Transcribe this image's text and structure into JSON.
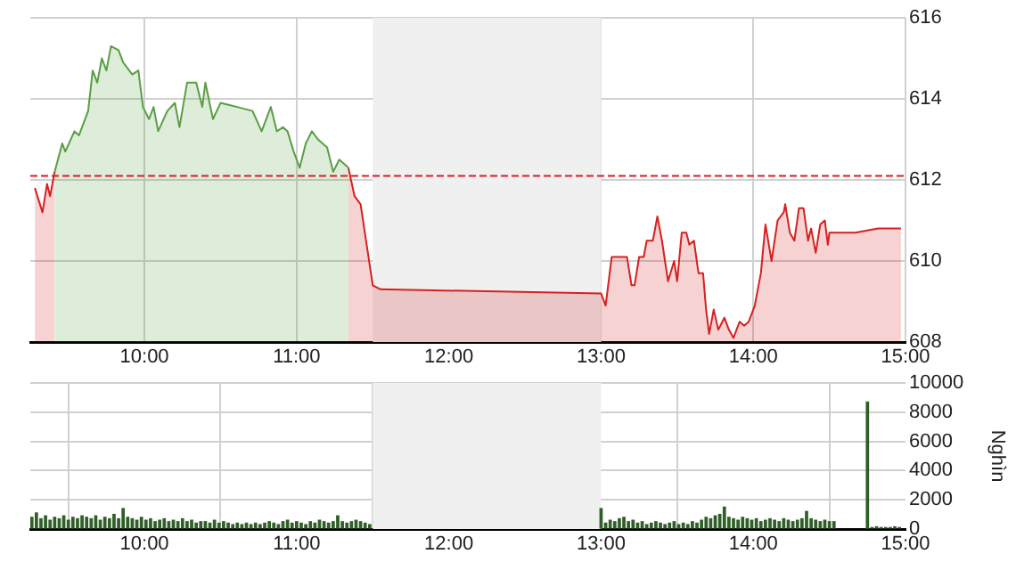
{
  "chart_data": [
    {
      "type": "area",
      "grid": true,
      "legend": false,
      "xlim": [
        9.25,
        15
      ],
      "ylim": [
        608,
        616
      ],
      "xticks": [
        {
          "value": 10,
          "label": "10:00"
        },
        {
          "value": 11,
          "label": "11:00"
        },
        {
          "value": 12,
          "label": "12:00"
        },
        {
          "value": 13,
          "label": "13:00"
        },
        {
          "value": 14,
          "label": "14:00"
        },
        {
          "value": 15,
          "label": "15:00"
        }
      ],
      "yticks": [
        608,
        610,
        612,
        614,
        616
      ],
      "ref_lines": [
        {
          "axis": "y",
          "value": 612.1,
          "color": "#d62020",
          "line_style": "dashed"
        }
      ],
      "bands": [
        {
          "axis": "x",
          "from": 11.5,
          "to": 13,
          "color": "#f0f0f0"
        }
      ],
      "series": [
        {
          "color": "#5a9e44",
          "x": [
            9.41,
            9.46,
            9.48,
            9.54,
            9.57,
            9.63,
            9.66,
            9.69,
            9.72,
            9.75,
            9.78,
            9.83,
            9.86,
            9.92,
            9.96,
            9.99,
            10.03,
            10.06,
            10.09,
            10.15,
            10.2,
            10.23,
            10.28,
            10.34,
            10.38,
            10.4,
            10.45,
            10.5,
            10.61,
            10.71,
            10.77,
            10.83,
            10.87,
            10.91,
            10.94,
            10.98,
            11.02,
            11.06,
            11.1,
            11.14,
            11.2,
            11.24,
            11.28,
            11.34
          ],
          "values": [
            612.2,
            612.9,
            612.7,
            613.2,
            613.1,
            613.7,
            614.7,
            614.4,
            615.0,
            614.7,
            615.3,
            615.2,
            614.9,
            614.6,
            614.7,
            613.8,
            613.5,
            613.8,
            613.2,
            613.7,
            613.9,
            613.3,
            614.4,
            614.4,
            613.8,
            614.4,
            613.5,
            613.9,
            613.8,
            613.7,
            613.2,
            613.8,
            613.2,
            613.3,
            613.2,
            612.7,
            612.3,
            612.9,
            613.2,
            613.0,
            612.8,
            612.2,
            612.5,
            612.3
          ]
        },
        {
          "color": "#d62020",
          "x": [
            9.28,
            9.33,
            9.36,
            9.38,
            9.41
          ],
          "values": [
            611.8,
            611.2,
            611.9,
            611.6,
            612.2
          ]
        },
        {
          "color": "#d62020",
          "x": [
            11.34,
            11.38,
            11.42,
            11.46,
            11.5,
            11.55,
            13.0,
            13.03,
            13.07,
            13.13,
            13.17,
            13.2,
            13.22,
            13.25,
            13.28,
            13.3,
            13.34,
            13.37,
            13.4,
            13.44,
            13.48,
            13.5,
            13.53,
            13.56,
            13.58,
            13.61,
            13.64,
            13.67,
            13.69,
            13.71,
            13.74,
            13.77,
            13.81,
            13.84,
            13.87,
            13.91,
            13.94,
            13.97,
            14.01,
            14.05,
            14.08,
            14.12,
            14.16,
            14.2,
            14.21,
            14.24,
            14.27,
            14.3,
            14.33,
            14.36,
            14.38,
            14.41,
            14.44,
            14.47,
            14.49,
            14.5,
            14.67,
            14.82,
            14.97
          ],
          "values": [
            612.3,
            611.6,
            611.4,
            610.4,
            609.4,
            609.3,
            609.2,
            608.9,
            610.1,
            610.1,
            610.1,
            609.4,
            609.4,
            610.1,
            610.1,
            610.5,
            610.5,
            611.1,
            610.5,
            609.5,
            610.0,
            609.5,
            610.7,
            610.7,
            610.4,
            610.5,
            609.7,
            609.7,
            608.8,
            608.2,
            608.8,
            608.3,
            608.6,
            608.3,
            608.1,
            608.5,
            608.4,
            608.5,
            608.9,
            609.7,
            610.9,
            610.0,
            611.0,
            611.2,
            611.4,
            610.7,
            610.5,
            611.3,
            611.3,
            610.5,
            610.8,
            610.2,
            610.9,
            611.0,
            610.4,
            610.7,
            610.7,
            610.8,
            610.8
          ]
        }
      ]
    },
    {
      "type": "bar",
      "grid": true,
      "legend": false,
      "ylabel": "Nghìn",
      "xlim": [
        9.25,
        15
      ],
      "ylim": [
        0,
        10000
      ],
      "xticks": [
        {
          "value": 10,
          "label": "10:00"
        },
        {
          "value": 11,
          "label": "11:00"
        },
        {
          "value": 12,
          "label": "12:00"
        },
        {
          "value": 13,
          "label": "13:00"
        },
        {
          "value": 14,
          "label": "14:00"
        },
        {
          "value": 15,
          "label": "15:00"
        }
      ],
      "yticks": [
        0,
        2000,
        4000,
        6000,
        8000,
        10000
      ],
      "bands": [
        {
          "axis": "x",
          "from": 11.5,
          "to": 13,
          "color": "#f0f0f0"
        }
      ],
      "series": [
        {
          "color": "#2f5f27",
          "x": [
            9.26,
            9.29,
            9.32,
            9.35,
            9.38,
            9.41,
            9.44,
            9.47,
            9.5,
            9.53,
            9.56,
            9.59,
            9.62,
            9.65,
            9.68,
            9.71,
            9.74,
            9.77,
            9.8,
            9.83,
            9.86,
            9.89,
            9.92,
            9.95,
            9.98,
            10.01,
            10.04,
            10.07,
            10.1,
            10.13,
            10.16,
            10.19,
            10.22,
            10.25,
            10.28,
            10.31,
            10.34,
            10.37,
            10.4,
            10.43,
            10.46,
            10.49,
            10.52,
            10.55,
            10.58,
            10.61,
            10.64,
            10.67,
            10.7,
            10.73,
            10.76,
            10.79,
            10.82,
            10.85,
            10.88,
            10.91,
            10.94,
            10.97,
            11.0,
            11.03,
            11.06,
            11.09,
            11.12,
            11.15,
            11.18,
            11.21,
            11.24,
            11.27,
            11.3,
            11.33,
            11.36,
            11.39,
            11.42,
            11.45,
            11.48,
            13.0,
            13.03,
            13.06,
            13.09,
            13.12,
            13.15,
            13.18,
            13.21,
            13.24,
            13.27,
            13.3,
            13.33,
            13.36,
            13.39,
            13.42,
            13.45,
            13.48,
            13.51,
            13.54,
            13.57,
            13.6,
            13.63,
            13.66,
            13.69,
            13.72,
            13.75,
            13.78,
            13.81,
            13.84,
            13.87,
            13.9,
            13.93,
            13.96,
            13.99,
            14.02,
            14.05,
            14.08,
            14.11,
            14.14,
            14.17,
            14.2,
            14.23,
            14.26,
            14.29,
            14.32,
            14.35,
            14.38,
            14.41,
            14.44,
            14.47,
            14.5,
            14.53,
            14.75,
            14.78,
            14.81,
            14.84,
            14.87,
            14.9,
            14.93,
            14.96
          ],
          "values": [
            800,
            1100,
            700,
            900,
            600,
            800,
            700,
            900,
            600,
            800,
            700,
            900,
            800,
            700,
            900,
            600,
            800,
            700,
            1000,
            700,
            1400,
            800,
            700,
            600,
            800,
            600,
            700,
            500,
            600,
            700,
            500,
            600,
            500,
            700,
            500,
            600,
            400,
            500,
            500,
            400,
            600,
            400,
            500,
            400,
            300,
            400,
            300,
            400,
            300,
            400,
            300,
            400,
            500,
            400,
            300,
            500,
            600,
            400,
            500,
            400,
            300,
            500,
            400,
            600,
            500,
            400,
            500,
            900,
            500,
            400,
            500,
            600,
            500,
            400,
            300,
            1400,
            400,
            600,
            500,
            700,
            800,
            500,
            600,
            400,
            500,
            300,
            400,
            500,
            400,
            300,
            400,
            500,
            300,
            400,
            300,
            500,
            400,
            600,
            800,
            700,
            900,
            1000,
            1500,
            800,
            700,
            600,
            800,
            700,
            600,
            700,
            500,
            600,
            700,
            600,
            500,
            700,
            600,
            500,
            600,
            700,
            1200,
            700,
            600,
            500,
            600,
            500,
            500,
            8700,
            100,
            150,
            100,
            100,
            100,
            150,
            100
          ]
        }
      ]
    }
  ]
}
